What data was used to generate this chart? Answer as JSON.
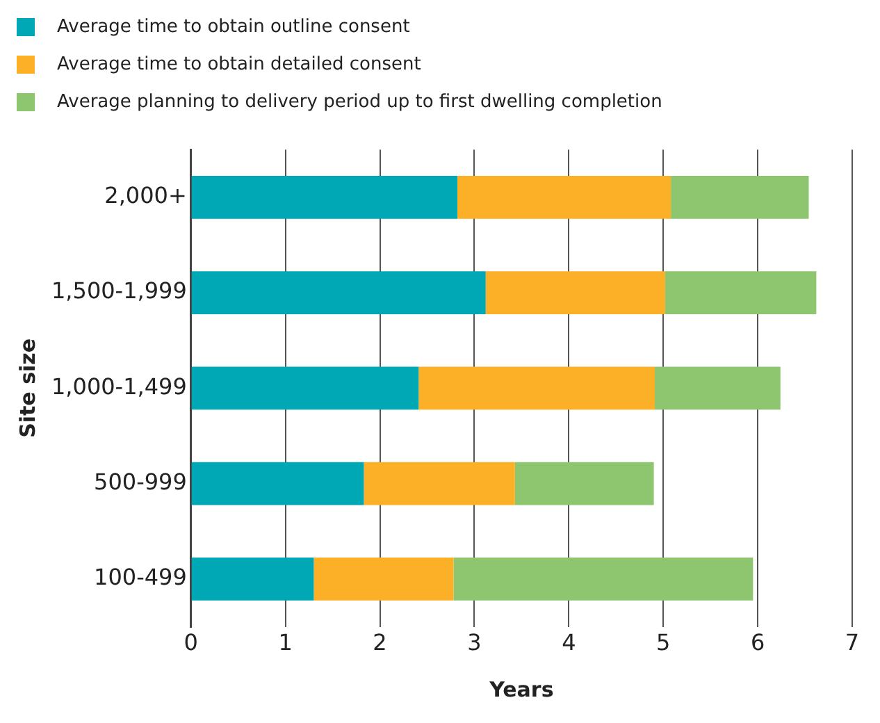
{
  "chart_data": {
    "type": "bar",
    "orientation": "horizontal",
    "stacked": true,
    "categories": [
      "2,000+",
      "1,500-1,999",
      "1,000-1,499",
      "500-999",
      "100-499"
    ],
    "series": [
      {
        "name": "Average time to obtain outline consent",
        "color": "#00a8b5",
        "values": [
          2.82,
          3.12,
          2.41,
          1.83,
          1.3
        ]
      },
      {
        "name": "Average time to obtain detailed consent",
        "color": "#fbb027",
        "values": [
          2.26,
          1.9,
          2.5,
          1.6,
          1.48
        ]
      },
      {
        "name": "Average planning to delivery period up to first dwelling completion",
        "color": "#8dc66f",
        "values": [
          1.46,
          1.6,
          1.33,
          1.47,
          3.17
        ]
      }
    ],
    "xlabel": "Years",
    "ylabel": "Site size",
    "xlim": [
      0,
      7
    ],
    "xticks": [
      0,
      1,
      2,
      3,
      4,
      5,
      6,
      7
    ],
    "grid": "x",
    "legend": "top"
  }
}
